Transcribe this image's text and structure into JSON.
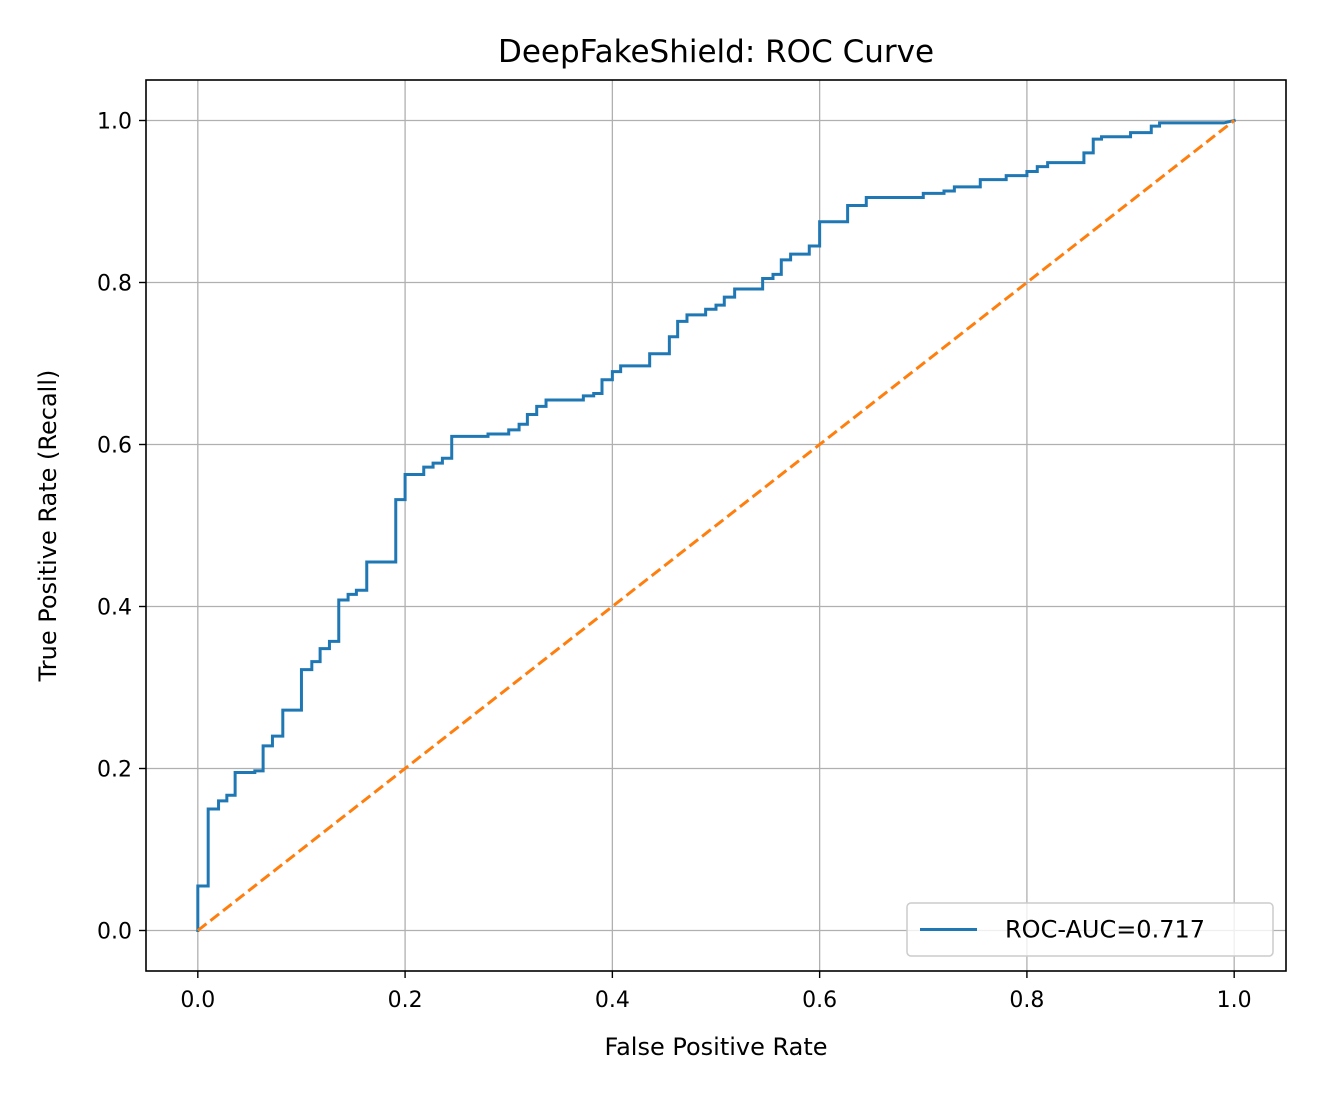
{
  "chart_data": {
    "type": "line",
    "title": "DeepFakeShield: ROC Curve",
    "xlabel": "False Positive Rate",
    "ylabel": "True Positive Rate (Recall)",
    "xlim": [
      -0.05,
      1.05
    ],
    "ylim": [
      -0.05,
      1.05
    ],
    "x_ticks": [
      0.0,
      0.2,
      0.4,
      0.6,
      0.8,
      1.0
    ],
    "y_ticks": [
      0.0,
      0.2,
      0.4,
      0.6,
      0.8,
      1.0
    ],
    "x_tick_labels": [
      "0.0",
      "0.2",
      "0.4",
      "0.6",
      "0.8",
      "1.0"
    ],
    "y_tick_labels": [
      "0.0",
      "0.2",
      "0.4",
      "0.6",
      "0.8",
      "1.0"
    ],
    "grid": true,
    "legend_position": "lower-right",
    "series": [
      {
        "name": "ROC-AUC=0.717",
        "color": "#1f77b4",
        "style": "solid",
        "step": true,
        "x": [
          0.0,
          0.0,
          0.01,
          0.01,
          0.02,
          0.02,
          0.028,
          0.028,
          0.036,
          0.036,
          0.055,
          0.055,
          0.063,
          0.063,
          0.072,
          0.072,
          0.082,
          0.082,
          0.1,
          0.1,
          0.11,
          0.11,
          0.118,
          0.118,
          0.127,
          0.127,
          0.136,
          0.136,
          0.145,
          0.145,
          0.153,
          0.153,
          0.163,
          0.163,
          0.191,
          0.191,
          0.2,
          0.2,
          0.218,
          0.218,
          0.227,
          0.227,
          0.236,
          0.236,
          0.245,
          0.245,
          0.28,
          0.28,
          0.3,
          0.3,
          0.31,
          0.31,
          0.318,
          0.318,
          0.327,
          0.327,
          0.336,
          0.336,
          0.372,
          0.372,
          0.382,
          0.382,
          0.39,
          0.39,
          0.4,
          0.4,
          0.408,
          0.408,
          0.436,
          0.436,
          0.455,
          0.455,
          0.463,
          0.463,
          0.472,
          0.472,
          0.49,
          0.49,
          0.5,
          0.5,
          0.508,
          0.508,
          0.518,
          0.518,
          0.545,
          0.545,
          0.555,
          0.555,
          0.563,
          0.563,
          0.572,
          0.572,
          0.59,
          0.59,
          0.6,
          0.6,
          0.627,
          0.627,
          0.645,
          0.645,
          0.7,
          0.7,
          0.72,
          0.72,
          0.73,
          0.73,
          0.755,
          0.755,
          0.78,
          0.78,
          0.8,
          0.8,
          0.81,
          0.81,
          0.82,
          0.82,
          0.855,
          0.855,
          0.864,
          0.864,
          0.872,
          0.872,
          0.9,
          0.9,
          0.92,
          0.92,
          0.928,
          0.928,
          0.99,
          1.0
        ],
        "y": [
          0.0,
          0.055,
          0.055,
          0.15,
          0.15,
          0.16,
          0.16,
          0.167,
          0.167,
          0.195,
          0.195,
          0.197,
          0.197,
          0.228,
          0.228,
          0.24,
          0.24,
          0.272,
          0.272,
          0.322,
          0.322,
          0.332,
          0.332,
          0.348,
          0.348,
          0.357,
          0.357,
          0.408,
          0.408,
          0.415,
          0.415,
          0.42,
          0.42,
          0.455,
          0.455,
          0.532,
          0.532,
          0.563,
          0.563,
          0.572,
          0.572,
          0.577,
          0.577,
          0.583,
          0.583,
          0.61,
          0.61,
          0.613,
          0.613,
          0.618,
          0.618,
          0.625,
          0.625,
          0.637,
          0.637,
          0.647,
          0.647,
          0.655,
          0.655,
          0.66,
          0.66,
          0.663,
          0.663,
          0.68,
          0.68,
          0.69,
          0.69,
          0.697,
          0.697,
          0.712,
          0.712,
          0.733,
          0.733,
          0.752,
          0.752,
          0.76,
          0.76,
          0.767,
          0.767,
          0.772,
          0.772,
          0.782,
          0.782,
          0.792,
          0.792,
          0.805,
          0.805,
          0.81,
          0.81,
          0.828,
          0.828,
          0.835,
          0.835,
          0.845,
          0.845,
          0.875,
          0.875,
          0.895,
          0.895,
          0.905,
          0.905,
          0.91,
          0.91,
          0.913,
          0.913,
          0.918,
          0.918,
          0.927,
          0.927,
          0.932,
          0.932,
          0.937,
          0.937,
          0.943,
          0.943,
          0.948,
          0.948,
          0.96,
          0.96,
          0.977,
          0.977,
          0.98,
          0.98,
          0.985,
          0.985,
          0.993,
          0.993,
          0.997,
          0.997,
          1.0
        ]
      },
      {
        "name": "",
        "color": "#ff7f0e",
        "style": "dashed",
        "step": false,
        "x": [
          0.0,
          1.0
        ],
        "y": [
          0.0,
          1.0
        ]
      }
    ]
  },
  "colors": {
    "grid": "#b0b0b0",
    "frame": "#000000",
    "background": "#ffffff",
    "legend_border": "#cccccc"
  }
}
